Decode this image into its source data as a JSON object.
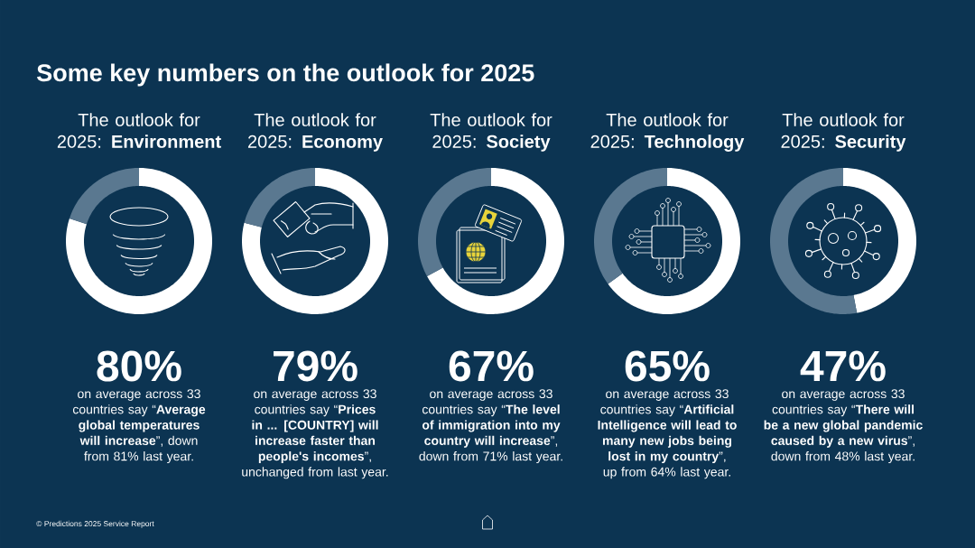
{
  "chart_data": [
    {
      "type": "other",
      "title": "Some key numbers on the outlook for 2025",
      "annotations": [
        "© Predictions 2025 Service Report"
      ]
    },
    {
      "type": "donut",
      "title": "The outlook for 2025: **Environment**",
      "categories": [
        null,
        null
      ],
      "values": [
        80,
        20
      ],
      "colors": [
        "#ffffff",
        "#5a7890"
      ],
      "value_labels": [
        "80%",
        null
      ],
      "annotations": [
        "on average across 33 countries say “**Average global temperatures will increase**”, down from 81% last year."
      ]
    },
    {
      "type": "donut",
      "title": "The outlook for 2025: **Economy**",
      "categories": [
        null,
        null
      ],
      "values": [
        79,
        21
      ],
      "colors": [
        "#ffffff",
        "#5a7890"
      ],
      "value_labels": [
        "79%",
        null
      ],
      "annotations": [
        "on average across 33 countries say “**Prices in ... [COUNTRY] will increase faster than people's incomes**”, unchanged from last year."
      ]
    },
    {
      "type": "donut",
      "title": "The outlook for 2025: **Society**",
      "categories": [
        null,
        null
      ],
      "values": [
        67,
        33
      ],
      "colors": [
        "#ffffff",
        "#5a7890"
      ],
      "value_labels": [
        "67%",
        null
      ],
      "annotations": [
        "on average across 33 countries say “**The level of immigration into my country will increase**”, down from 71% last year."
      ]
    },
    {
      "type": "donut",
      "title": "The outlook for 2025: **Technology**",
      "categories": [
        null,
        null
      ],
      "values": [
        65,
        35
      ],
      "colors": [
        "#ffffff",
        "#5a7890"
      ],
      "value_labels": [
        "65%",
        null
      ],
      "annotations": [
        "on average across 33 countries say “**Artificial Intelligence will lead to many new jobs being lost in my country**”, up from 64% last year."
      ]
    },
    {
      "type": "donut",
      "title": "The outlook for 2025: **Security**",
      "categories": [
        null,
        null
      ],
      "values": [
        47,
        53
      ],
      "colors": [
        "#ffffff",
        "#5a7890"
      ],
      "value_labels": [
        "47%",
        null
      ],
      "annotations": [
        "on average across 33 countries say “**There will be a new global pandemic caused by a new virus**”, down from 48% last year."
      ]
    }
  ]
}
